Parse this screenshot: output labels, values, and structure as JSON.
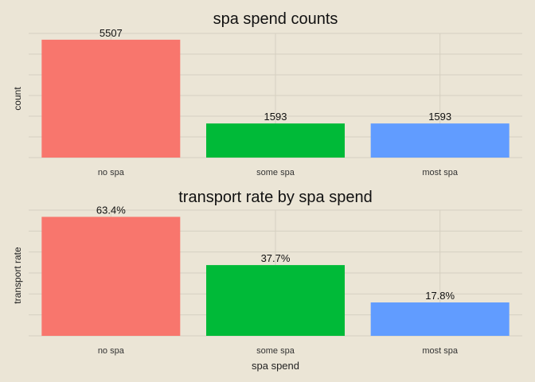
{
  "chart_data": [
    {
      "type": "bar",
      "title": "spa spend counts",
      "xlabel": "",
      "ylabel": "count",
      "categories": [
        "no spa",
        "some spa",
        "most spa"
      ],
      "values": [
        5507,
        1593,
        1593
      ],
      "value_labels": [
        "5507",
        "1593",
        "1593"
      ],
      "ylim": [
        0,
        5800
      ],
      "colors": [
        "#F8766D",
        "#00BA38",
        "#619CFF"
      ],
      "grid": true,
      "legend": "none"
    },
    {
      "type": "bar",
      "title": "transport rate by spa spend",
      "xlabel": "spa spend",
      "ylabel": "transport rate",
      "categories": [
        "no spa",
        "some spa",
        "most spa"
      ],
      "values": [
        0.634,
        0.377,
        0.178
      ],
      "value_labels": [
        "63.4%",
        "37.7%",
        "17.8%"
      ],
      "ylim": [
        0,
        0.67
      ],
      "colors": [
        "#F8766D",
        "#00BA38",
        "#619CFF"
      ],
      "grid": true,
      "legend": "none"
    }
  ]
}
